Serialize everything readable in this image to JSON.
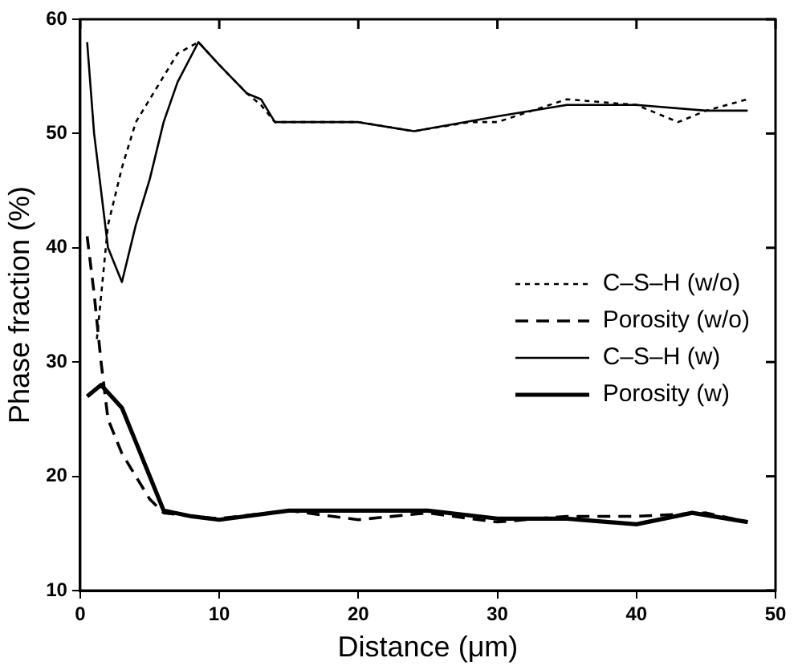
{
  "chart_data": {
    "type": "line",
    "xlabel": "Distance (μm)",
    "ylabel": "Phase fraction (%)",
    "xlim": [
      0,
      50
    ],
    "xticks": [
      0,
      10,
      20,
      30,
      40,
      50
    ],
    "ylim": [
      10,
      60
    ],
    "yticks": [
      10,
      20,
      30,
      40,
      50,
      60
    ],
    "grid": false,
    "legend": "right",
    "marker": "none",
    "series": [
      {
        "name": "C–S–H (w/o)",
        "color": "#000000",
        "line_style": "dotted",
        "x": [
          1.2,
          2,
          3,
          4,
          5,
          6,
          7,
          8.5,
          10,
          12,
          13,
          14,
          20,
          24,
          28,
          30,
          35,
          40,
          43,
          45,
          48
        ],
        "values": [
          32,
          42,
          47,
          51,
          53,
          55,
          57,
          58,
          56,
          53.5,
          52.5,
          51,
          51,
          50.2,
          51,
          51,
          53,
          52.5,
          51,
          52,
          53
        ]
      },
      {
        "name": "Porosity (w/o)",
        "color": "#000000",
        "line_style": "dashed",
        "x": [
          0.5,
          1,
          1.5,
          2,
          3,
          4,
          5,
          6,
          8,
          10,
          15,
          20,
          25,
          28,
          30,
          35,
          40,
          45,
          48
        ],
        "values": [
          41,
          36,
          30,
          25,
          22,
          20,
          18,
          16.8,
          16.5,
          16.3,
          17,
          16.2,
          16.8,
          16.3,
          16,
          16.5,
          16.5,
          16.8,
          16
        ]
      },
      {
        "name": "C–S–H (w)",
        "color": "#000000",
        "line_style": "solid",
        "x": [
          0.5,
          1,
          2,
          3,
          4,
          5,
          6,
          7,
          8.5,
          10,
          12,
          13,
          14,
          20,
          24,
          30,
          35,
          40,
          45,
          48
        ],
        "values": [
          58,
          50,
          40,
          37,
          42,
          46,
          51,
          54.5,
          58,
          56,
          53.5,
          53,
          51,
          51,
          50.2,
          51.5,
          52.5,
          52.5,
          52,
          52
        ]
      },
      {
        "name": "Porosity (w)",
        "color": "#000000",
        "line_style": "solid",
        "x": [
          0.5,
          1.5,
          3,
          4,
          5,
          6,
          8,
          10,
          15,
          20,
          25,
          30,
          35,
          40,
          44,
          48
        ],
        "values": [
          27,
          28,
          26,
          23,
          20,
          17,
          16.5,
          16.2,
          17,
          17,
          17,
          16.3,
          16.3,
          15.8,
          16.8,
          16
        ]
      }
    ]
  }
}
